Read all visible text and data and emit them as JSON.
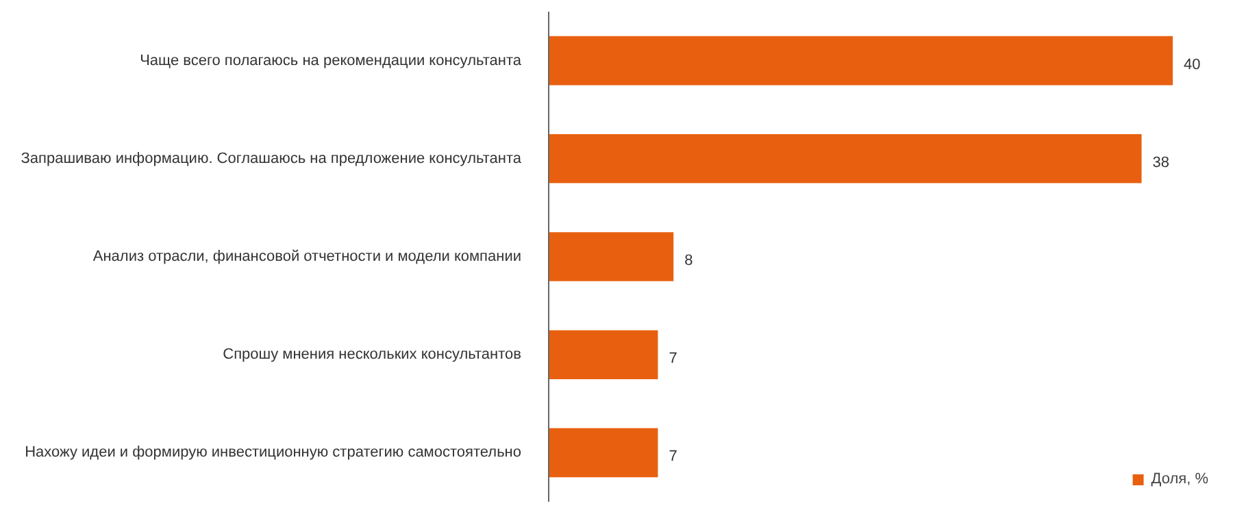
{
  "chart_data": {
    "type": "bar",
    "orientation": "horizontal",
    "categories": [
      "Чаще всего полагаюсь на рекомендации консультанта",
      "Запрашиваю информацию. Соглашаюсь на предложение консультанта",
      "Анализ отрасли, финансовой отчетности и модели компании",
      "Спрошу мнения нескольких консультантов",
      "Нахожу идеи и формирую инвестиционную стратегию самостоятельно"
    ],
    "series": [
      {
        "name": "Доля, %",
        "color": "#e8600f",
        "values": [
          40,
          38,
          8,
          7,
          7
        ]
      }
    ],
    "data_labels": true,
    "legend": "bottom right",
    "grid": false
  }
}
